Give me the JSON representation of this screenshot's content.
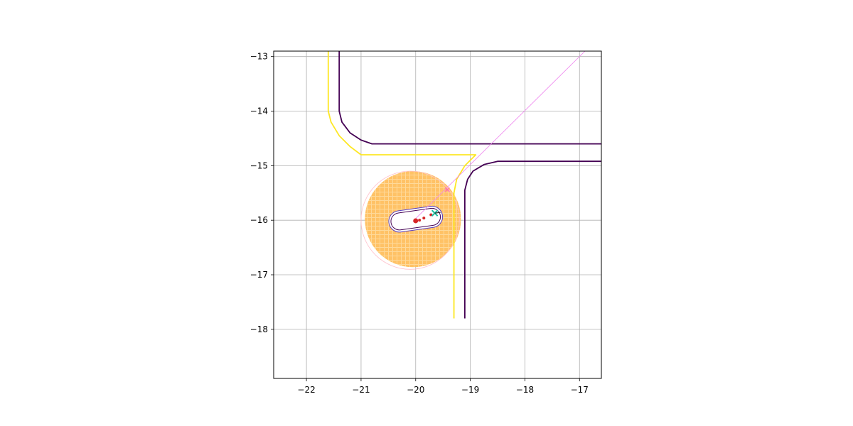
{
  "chart_data": {
    "type": "scatter",
    "title": "",
    "xlabel": "",
    "ylabel": "",
    "xlim": [
      -22.6,
      -16.6
    ],
    "ylim": [
      -18.9,
      -12.9
    ],
    "grid": true,
    "x_ticks": [
      -22,
      -21,
      -20,
      -19,
      -18,
      -17
    ],
    "y_ticks": [
      -13,
      -14,
      -15,
      -16,
      -17,
      -18
    ],
    "x_tick_labels": [
      "−22",
      "−21",
      "−20",
      "−19",
      "−18",
      "−17"
    ],
    "y_tick_labels": [
      "−13",
      "−14",
      "−15",
      "−16",
      "−17",
      "−18"
    ],
    "colors": {
      "road_outer": "#440154",
      "road_inner": "#fde725",
      "ray": "#ee82ee",
      "occupancy": "#ffc266",
      "range_circle": "#ffc0cb",
      "vehicle_outline": "#5a3fc0",
      "trajectory": "#d62728",
      "goal_marker": "#1abc9c",
      "ray_hit": "#ff69b4"
    },
    "series": [
      {
        "name": "road-boundary-outer",
        "kind": "line",
        "parts": [
          {
            "x": [
              -21.4,
              -21.4,
              -21.35,
              -21.2,
              -21.0,
              -20.8,
              -16.6
            ],
            "y": [
              -12.9,
              -14.0,
              -14.2,
              -14.4,
              -14.53,
              -14.6,
              -14.6
            ]
          },
          {
            "x": [
              -16.6,
              -18.5,
              -18.75,
              -18.95,
              -19.05,
              -19.1,
              -19.1
            ],
            "y": [
              -14.92,
              -14.92,
              -14.98,
              -15.1,
              -15.25,
              -15.45,
              -17.8
            ]
          }
        ]
      },
      {
        "name": "road-boundary-inner",
        "kind": "line",
        "parts": [
          {
            "x": [
              -21.6,
              -21.6,
              -21.55,
              -21.4,
              -21.2,
              -21.0,
              -18.9,
              -19.1,
              -19.25,
              -19.3,
              -19.3
            ],
            "y": [
              -12.9,
              -14.0,
              -14.2,
              -14.45,
              -14.65,
              -14.8,
              -14.8,
              -15.0,
              -15.25,
              -15.5,
              -17.8
            ]
          }
        ]
      },
      {
        "name": "ray",
        "kind": "line",
        "x": [
          -20.05,
          -16.9
        ],
        "y": [
          -16.02,
          -12.9
        ]
      },
      {
        "name": "trajectory",
        "kind": "scatter",
        "x": [
          -20.0,
          -19.93,
          -19.85,
          -19.72
        ],
        "y": [
          -16.01,
          -16.0,
          -15.96,
          -15.9
        ]
      },
      {
        "name": "goal",
        "kind": "scatter",
        "x": [
          -19.65
        ],
        "y": [
          -15.87
        ]
      },
      {
        "name": "ray-hit",
        "kind": "scatter",
        "x": [
          -19.42
        ],
        "y": [
          -15.44
        ]
      }
    ],
    "occupancy_disk": {
      "cx": -20.05,
      "cy": -15.98,
      "r": 0.88
    },
    "range_circle": {
      "cx": -20.1,
      "cy": -16.0,
      "r": 0.9
    }
  }
}
